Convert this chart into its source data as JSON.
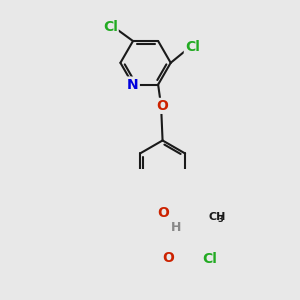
{
  "bg_color": "#e8e8e8",
  "bond_color": "#1a1a1a",
  "bond_width": 1.5,
  "atom_colors": {
    "Cl": "#22aa22",
    "N": "#0000dd",
    "O": "#cc2200",
    "H": "#888888",
    "C": "#1a1a1a"
  },
  "font_size": 9,
  "fig_width": 3.0,
  "fig_height": 3.0,
  "dpi": 100
}
